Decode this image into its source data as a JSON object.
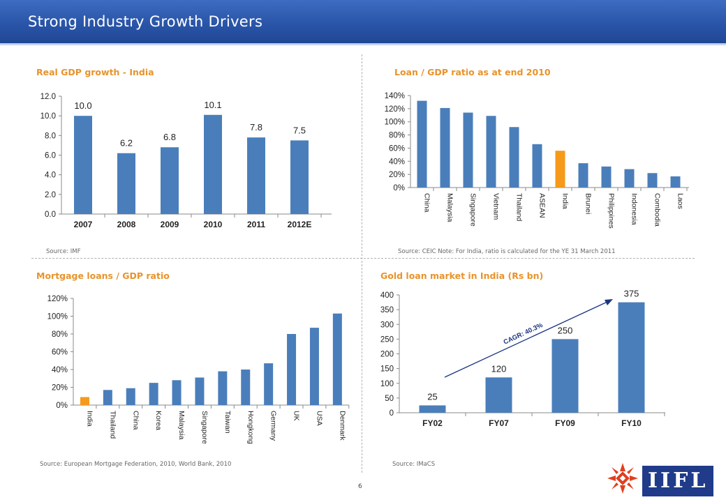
{
  "header": {
    "title": "Strong Industry Growth Drivers"
  },
  "page_number": "6",
  "logo_text": "IIFL",
  "charts": [
    {
      "title": "Real GDP growth - India",
      "source": "Source:  IMF"
    },
    {
      "title": "Loan / GDP ratio as at end 2010",
      "source": "Source:   CEIC Note: For India, ratio is calculated for the YE 31 March 2011"
    },
    {
      "title": "Mortgage loans / GDP ratio",
      "source": "Source:  European Mortgage Federation, 2010, World Bank, 2010"
    },
    {
      "title": "Gold loan market in India (Rs  bn)",
      "source": "Source:  IMaCS",
      "annotation": "CAGR: 40.3%"
    }
  ],
  "chart_data": [
    {
      "type": "bar",
      "title": "Real GDP growth - India",
      "categories": [
        "2007",
        "2008",
        "2009",
        "2010",
        "2011",
        "2012E"
      ],
      "values": [
        10.0,
        6.2,
        6.8,
        10.1,
        7.8,
        7.5
      ],
      "data_labels": [
        "10.0",
        "6.2",
        "6.8",
        "10.1",
        "7.8",
        "7.5"
      ],
      "yticks": [
        "0.0",
        "2.0",
        "4.0",
        "6.0",
        "8.0",
        "10.0",
        "12.0"
      ],
      "ylim": [
        0,
        12
      ],
      "color": "#4a7ebb",
      "grid": false
    },
    {
      "type": "bar",
      "title": "Loan / GDP ratio as at end 2010",
      "categories": [
        "China",
        "Malaysia",
        "Singapore",
        "Vietnam",
        "Thailand",
        "ASEAN",
        "India",
        "Brunei",
        "Philippines",
        "Indonesia",
        "Combodia",
        "Laos"
      ],
      "values": [
        132,
        121,
        114,
        109,
        92,
        66,
        56,
        37,
        32,
        28,
        22,
        17
      ],
      "highlight": "India",
      "yticks": [
        "0%",
        "20%",
        "40%",
        "60%",
        "80%",
        "100%",
        "120%",
        "140%"
      ],
      "ylim": [
        0,
        140
      ],
      "color": "#4a7ebb",
      "highlight_color": "#f59a1a",
      "grid": false
    },
    {
      "type": "bar",
      "title": "Mortgage loans / GDP ratio",
      "categories": [
        "India",
        "Thailand",
        "China",
        "Korea",
        "Malaysia",
        "Singapore",
        "Taiwan",
        "Hongkong",
        "Germany",
        "UK",
        "USA",
        "Denmark"
      ],
      "values": [
        9,
        17,
        19,
        25,
        28,
        31,
        38,
        40,
        47,
        80,
        87,
        103
      ],
      "highlight": "India",
      "yticks": [
        "0%",
        "20%",
        "40%",
        "60%",
        "80%",
        "100%",
        "120%"
      ],
      "ylim": [
        0,
        120
      ],
      "color": "#4a7ebb",
      "highlight_color": "#f59a1a",
      "grid": false
    },
    {
      "type": "bar",
      "title": "Gold loan market in India (Rs  bn)",
      "categories": [
        "FY02",
        "FY07",
        "FY09",
        "FY10"
      ],
      "values": [
        25,
        120,
        250,
        375
      ],
      "data_labels": [
        "25",
        "120",
        "250",
        "375"
      ],
      "yticks": [
        "0",
        "50",
        "100",
        "150",
        "200",
        "250",
        "300",
        "350",
        "400"
      ],
      "ylim": [
        0,
        400
      ],
      "annotation": "CAGR: 40.3%",
      "color": "#4a7ebb",
      "grid": false
    }
  ]
}
